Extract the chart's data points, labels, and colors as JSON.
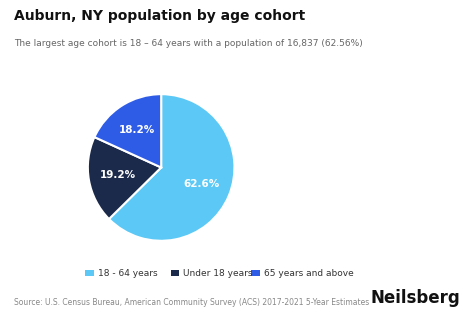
{
  "title": "Auburn, NY population by age cohort",
  "subtitle": "The largest age cohort is 18 – 64 years with a population of 16,837 (62.56%)",
  "slices": [
    62.6,
    19.2,
    18.2
  ],
  "labels": [
    "62.6%",
    "19.2%",
    "18.2%"
  ],
  "colors": [
    "#5BC8F5",
    "#1B2A4A",
    "#2E5CE6"
  ],
  "legend_labels": [
    "18 - 64 years",
    "Under 18 years",
    "65 years and above"
  ],
  "legend_colors": [
    "#5BC8F5",
    "#1B2A4A",
    "#2E5CE6"
  ],
  "source_text": "Source: U.S. Census Bureau, American Community Survey (ACS) 2017-2021 5-Year Estimates",
  "brand": "Neilsberg",
  "background_color": "#ffffff",
  "start_angle": 90,
  "label_fontsize": 7.5,
  "title_fontsize": 10,
  "subtitle_fontsize": 6.5,
  "legend_fontsize": 6.5,
  "source_fontsize": 5.5,
  "brand_fontsize": 12
}
